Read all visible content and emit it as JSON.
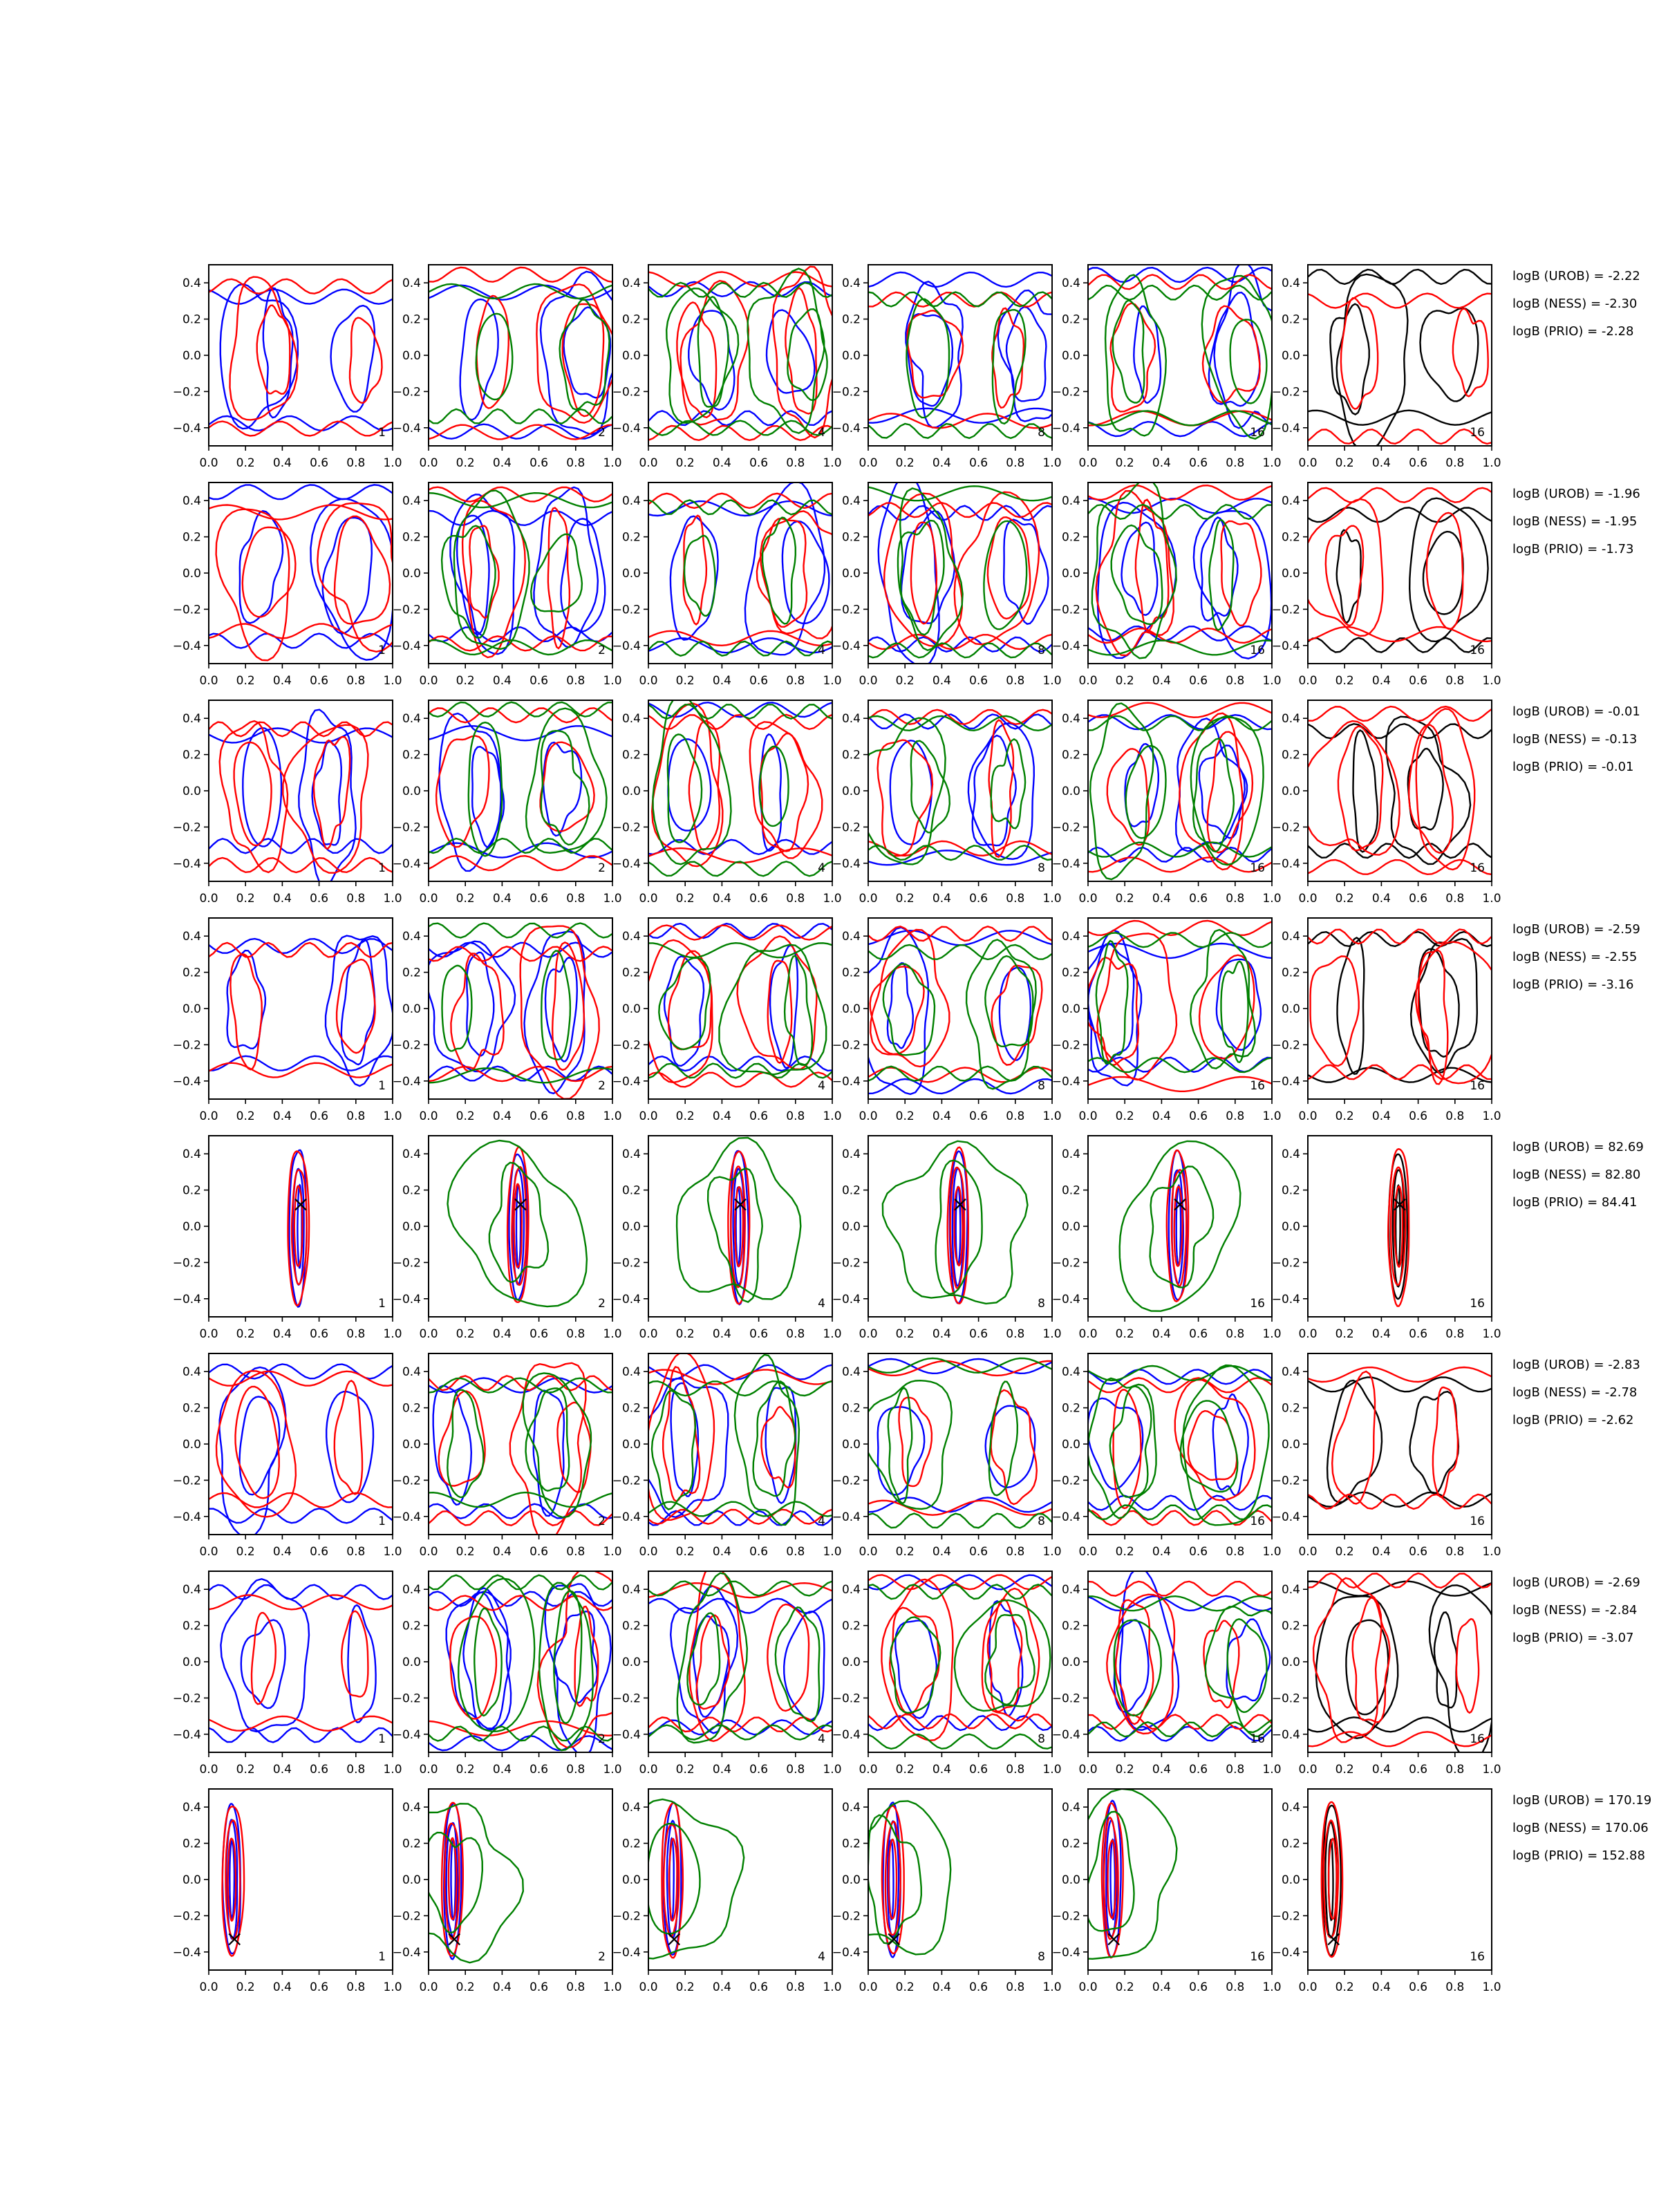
{
  "chart_data": {
    "type": "contour-grid",
    "rows": 8,
    "columns": 6,
    "xlim": [
      0.0,
      1.0
    ],
    "ylim": [
      -0.5,
      0.5
    ],
    "xticks": [
      "0.0",
      "0.2",
      "0.4",
      "0.6",
      "0.8",
      "1.0"
    ],
    "yticks": [
      "0.4",
      "0.2",
      "0.0",
      "−0.2",
      "−0.4"
    ],
    "panel_labels": [
      "1",
      "2",
      "4",
      "8",
      "16",
      "16"
    ],
    "colors": {
      "blue": "#0000ff",
      "red": "#ff0000",
      "green": "#008000",
      "black": "#000000"
    },
    "rows_data": [
      {
        "annotations": [
          "logB (UROB) = -2.22",
          "logB (NESS) = -2.30",
          "logB (PRIO) = -2.28"
        ],
        "marker": null,
        "lobes": [
          [
            0.3,
            0.0
          ],
          [
            0.82,
            0.0
          ]
        ],
        "peaked": false
      },
      {
        "annotations": [
          "logB (UROB) = -1.96",
          "logB (NESS) = -1.95",
          "logB (PRIO) = -1.73"
        ],
        "marker": null,
        "lobes": [
          [
            0.28,
            0.0
          ],
          [
            0.78,
            0.0
          ]
        ],
        "peaked": false
      },
      {
        "annotations": [
          "logB (UROB) = -0.01",
          "logB (NESS) = -0.13",
          "logB (PRIO) = -0.01"
        ],
        "marker": null,
        "lobes": [
          [
            0.25,
            0.0
          ],
          [
            0.7,
            0.0
          ]
        ],
        "peaked": false
      },
      {
        "annotations": [
          "logB (UROB) = -2.59",
          "logB (NESS) = -2.55",
          "logB (PRIO) = -3.16"
        ],
        "marker": null,
        "lobes": [
          [
            0.2,
            0.0
          ],
          [
            0.75,
            0.0
          ]
        ],
        "peaked": false
      },
      {
        "annotations": [
          "logB (UROB) = 82.69",
          "logB (NESS) = 82.80",
          "logB (PRIO) = 84.41"
        ],
        "marker": [
          0.5,
          0.12
        ],
        "lobes": [
          [
            0.49,
            0.0
          ]
        ],
        "peaked": true
      },
      {
        "annotations": [
          "logB (UROB) = -2.83",
          "logB (NESS) = -2.78",
          "logB (PRIO) = -2.62"
        ],
        "marker": null,
        "lobes": [
          [
            0.2,
            0.0
          ],
          [
            0.72,
            0.0
          ]
        ],
        "peaked": false
      },
      {
        "annotations": [
          "logB (UROB) = -2.69",
          "logB (NESS) = -2.84",
          "logB (PRIO) = -3.07"
        ],
        "marker": null,
        "lobes": [
          [
            0.3,
            0.0
          ],
          [
            0.8,
            0.0
          ]
        ],
        "peaked": false
      },
      {
        "annotations": [
          "logB (UROB) = 170.19",
          "logB (NESS) = 170.06",
          "logB (PRIO) = 152.88"
        ],
        "marker": [
          0.14,
          -0.33
        ],
        "lobes": [
          [
            0.13,
            0.0
          ]
        ],
        "peaked": true
      }
    ]
  }
}
